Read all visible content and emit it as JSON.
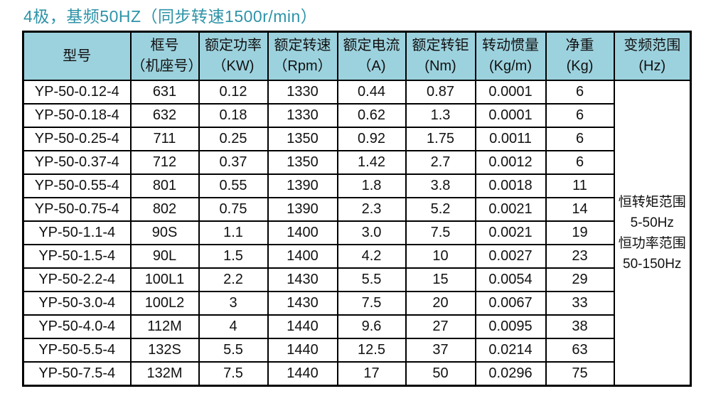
{
  "title": "4极，基频50HZ（同步转速1500r/min）",
  "colors": {
    "title_text": "#2E93A8",
    "header_bg": "#9CD2DE",
    "border": "#000000",
    "body_bg": "#FFFFFF",
    "cell_text": "#111111"
  },
  "table": {
    "headers": [
      {
        "line1": "型号",
        "line2": ""
      },
      {
        "line1": "框号",
        "line2": "（机座号）"
      },
      {
        "line1": "额定功率",
        "line2": "（KW)"
      },
      {
        "line1": "额定转速",
        "line2": "（Rpm）"
      },
      {
        "line1": "额定电流",
        "line2": "（A)"
      },
      {
        "line1": "额定转钜",
        "line2": "(Nm)"
      },
      {
        "line1": "转动惯量",
        "line2": "(Kg/m)"
      },
      {
        "line1": "净重",
        "line2": "(Kg)"
      },
      {
        "line1": "变频范围",
        "line2": "(Hz)"
      }
    ],
    "rows": [
      [
        "YP-50-0.12-4",
        "631",
        "0.12",
        "1330",
        "0.44",
        "0.87",
        "0.0001",
        "6"
      ],
      [
        "YP-50-0.18-4",
        "632",
        "0.18",
        "1330",
        "0.62",
        "1.3",
        "0.0001",
        "6"
      ],
      [
        "YP-50-0.25-4",
        "711",
        "0.25",
        "1350",
        "0.92",
        "1.75",
        "0.0011",
        "6"
      ],
      [
        "YP-50-0.37-4",
        "712",
        "0.37",
        "1350",
        "1.42",
        "2.7",
        "0.0012",
        "6"
      ],
      [
        "YP-50-0.55-4",
        "801",
        "0.55",
        "1390",
        "1.8",
        "3.8",
        "0.0018",
        "11"
      ],
      [
        "YP-50-0.75-4",
        "802",
        "0.75",
        "1390",
        "2.3",
        "5.2",
        "0.0021",
        "14"
      ],
      [
        "YP-50-1.1-4",
        "90S",
        "1.1",
        "1400",
        "3.0",
        "7.5",
        "0.0021",
        "19"
      ],
      [
        "YP-50-1.5-4",
        "90L",
        "1.5",
        "1400",
        "4.2",
        "10",
        "0.0027",
        "23"
      ],
      [
        "YP-50-2.2-4",
        "100L1",
        "2.2",
        "1430",
        "5.5",
        "15",
        "0.0054",
        "29"
      ],
      [
        "YP-50-3.0-4",
        "100L2",
        "3",
        "1430",
        "7.5",
        "20",
        "0.0067",
        "33"
      ],
      [
        "YP-50-4.0-4",
        "112M",
        "4",
        "1440",
        "9.6",
        "27",
        "0.0095",
        "38"
      ],
      [
        "YP-50-5.5-4",
        "132S",
        "5.5",
        "1440",
        "12.5",
        "37",
        "0.0214",
        "63"
      ],
      [
        "YP-50-7.5-4",
        "132M",
        "7.5",
        "1440",
        "17",
        "50",
        "0.0296",
        "75"
      ]
    ],
    "merged_note": {
      "lines": [
        "恒转矩范围",
        "5-50Hz",
        "恒功率范围",
        "50-150Hz"
      ]
    }
  }
}
